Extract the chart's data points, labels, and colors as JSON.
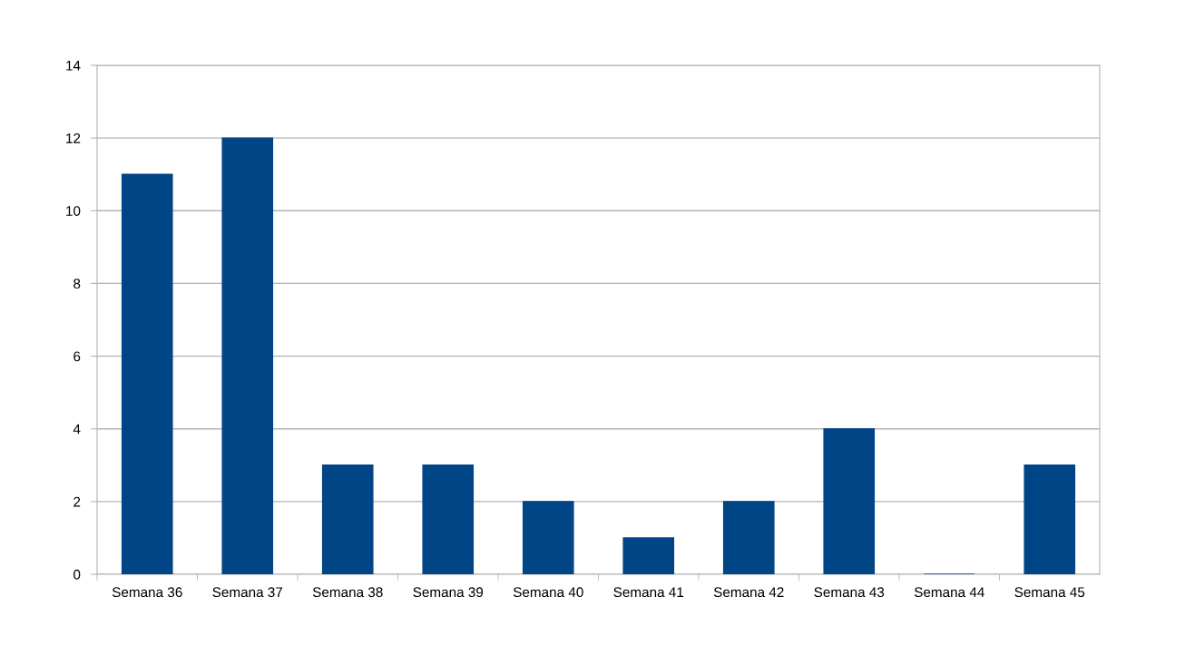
{
  "chart_data": {
    "type": "bar",
    "categories": [
      "Semana 36",
      "Semana 37",
      "Semana 38",
      "Semana 39",
      "Semana 40",
      "Semana 41",
      "Semana 42",
      "Semana 43",
      "Semana 44",
      "Semana 45"
    ],
    "values": [
      11,
      12,
      3,
      3,
      2,
      1,
      2,
      4,
      0,
      3
    ],
    "color": "#004586",
    "ylim": [
      0,
      14
    ],
    "yticks": [
      0,
      2,
      4,
      6,
      8,
      10,
      12,
      14
    ],
    "grid": "y"
  }
}
